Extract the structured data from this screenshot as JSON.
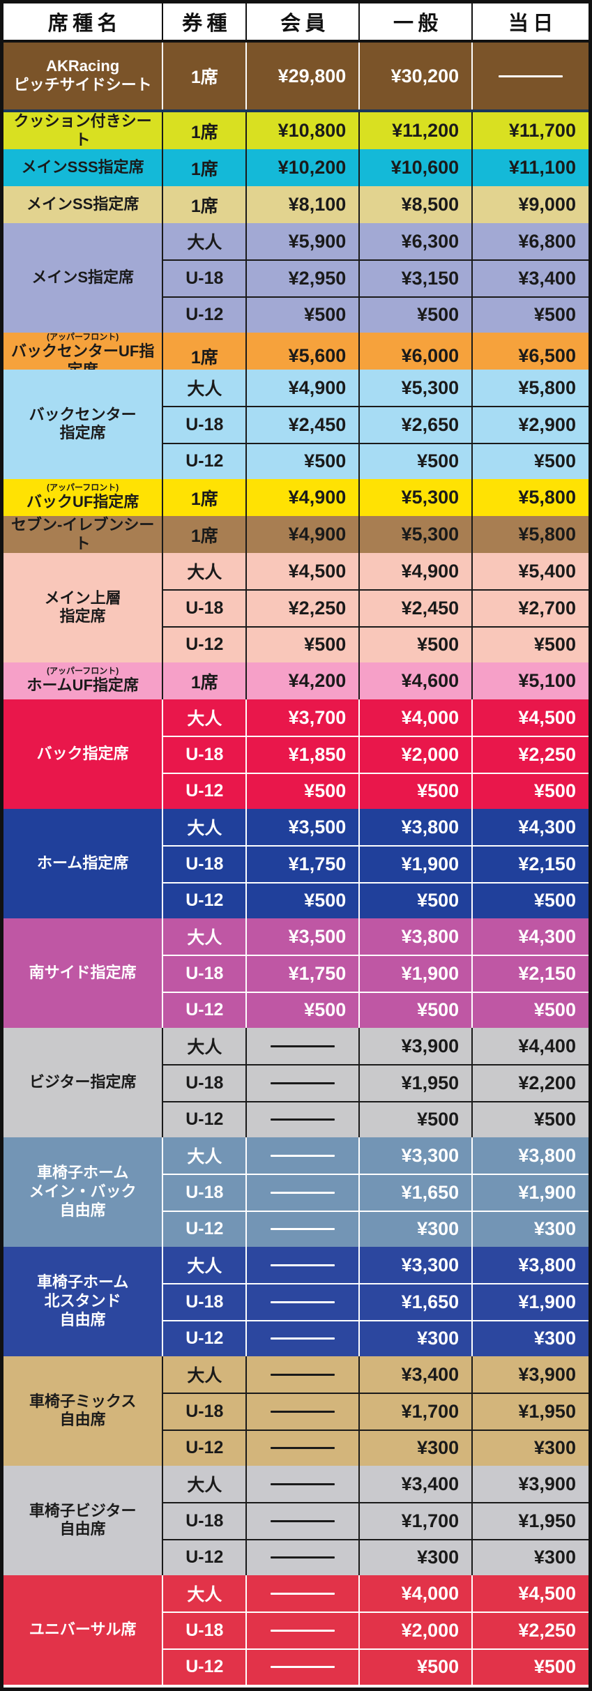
{
  "chart_data": {
    "type": "table",
    "columns": [
      "席種名",
      "券種",
      "会員",
      "一般",
      "当日"
    ],
    "currency": "¥",
    "unavailable_marker": "—",
    "sections": [
      {
        "id": "akracing-pitch-side",
        "seat_name_lines": [
          "AKRacing",
          "ピッチサイドシート"
        ],
        "bg": "#7b5429",
        "text": "#ffffff",
        "separator": "#ffffff",
        "underline": "#17365d",
        "rows": [
          {
            "ticket": "1席",
            "member": "¥29,800",
            "general": "¥30,200",
            "sameday": null
          }
        ]
      },
      {
        "id": "cushion-seat",
        "seat_name_lines": [
          "クッション付きシート"
        ],
        "bg": "#d9e021",
        "text": "#1a1a1a",
        "separator": "#1a1a1a",
        "rows": [
          {
            "ticket": "1席",
            "member": "¥10,800",
            "general": "¥11,200",
            "sameday": "¥11,700"
          }
        ]
      },
      {
        "id": "main-sss-reserved",
        "seat_name_lines": [
          "メインSSS指定席"
        ],
        "bg": "#14b9d8",
        "text": "#1a1a1a",
        "separator": "#1a1a1a",
        "rows": [
          {
            "ticket": "1席",
            "member": "¥10,200",
            "general": "¥10,600",
            "sameday": "¥11,100"
          }
        ]
      },
      {
        "id": "main-ss-reserved",
        "seat_name_lines": [
          "メインSS指定席"
        ],
        "bg": "#e2d38f",
        "text": "#1a1a1a",
        "separator": "#1a1a1a",
        "rows": [
          {
            "ticket": "1席",
            "member": "¥8,100",
            "general": "¥8,500",
            "sameday": "¥9,000"
          }
        ]
      },
      {
        "id": "main-s-reserved",
        "seat_name_lines": [
          "メインS指定席"
        ],
        "bg": "#a2a9d4",
        "text": "#1a1a1a",
        "separator": "#1a1a1a",
        "rows": [
          {
            "ticket": "大人",
            "member": "¥5,900",
            "general": "¥6,300",
            "sameday": "¥6,800"
          },
          {
            "ticket": "U-18",
            "member": "¥2,950",
            "general": "¥3,150",
            "sameday": "¥3,400"
          },
          {
            "ticket": "U-12",
            "member": "¥500",
            "general": "¥500",
            "sameday": "¥500"
          }
        ]
      },
      {
        "id": "back-center-uf-reserved",
        "note": "(アッパーフロント)",
        "seat_name_lines": [
          "バックセンターUF指定席"
        ],
        "bg": "#f6a23c",
        "text": "#1a1a1a",
        "separator": "#1a1a1a",
        "rows": [
          {
            "ticket": "1席",
            "member": "¥5,600",
            "general": "¥6,000",
            "sameday": "¥6,500"
          }
        ]
      },
      {
        "id": "back-center-reserved",
        "seat_name_lines": [
          "バックセンター",
          "指定席"
        ],
        "bg": "#a7dcf4",
        "text": "#1a1a1a",
        "separator": "#1a1a1a",
        "rows": [
          {
            "ticket": "大人",
            "member": "¥4,900",
            "general": "¥5,300",
            "sameday": "¥5,800"
          },
          {
            "ticket": "U-18",
            "member": "¥2,450",
            "general": "¥2,650",
            "sameday": "¥2,900"
          },
          {
            "ticket": "U-12",
            "member": "¥500",
            "general": "¥500",
            "sameday": "¥500"
          }
        ]
      },
      {
        "id": "back-uf-reserved",
        "note": "(アッパーフロント)",
        "seat_name_lines": [
          "バックUF指定席"
        ],
        "bg": "#ffe203",
        "text": "#1a1a1a",
        "separator": "#1a1a1a",
        "rows": [
          {
            "ticket": "1席",
            "member": "¥4,900",
            "general": "¥5,300",
            "sameday": "¥5,800"
          }
        ]
      },
      {
        "id": "seven-eleven-seat",
        "seat_name_lines": [
          "セブン-イレブンシート"
        ],
        "bg": "#a87e52",
        "text": "#1a1a1a",
        "separator": "#1a1a1a",
        "rows": [
          {
            "ticket": "1席",
            "member": "¥4,900",
            "general": "¥5,300",
            "sameday": "¥5,800"
          }
        ]
      },
      {
        "id": "main-upper-reserved",
        "seat_name_lines": [
          "メイン上層",
          "指定席"
        ],
        "bg": "#f9c7ba",
        "text": "#1a1a1a",
        "separator": "#1a1a1a",
        "rows": [
          {
            "ticket": "大人",
            "member": "¥4,500",
            "general": "¥4,900",
            "sameday": "¥5,400"
          },
          {
            "ticket": "U-18",
            "member": "¥2,250",
            "general": "¥2,450",
            "sameday": "¥2,700"
          },
          {
            "ticket": "U-12",
            "member": "¥500",
            "general": "¥500",
            "sameday": "¥500"
          }
        ]
      },
      {
        "id": "home-uf-reserved",
        "note": "(アッパーフロント)",
        "seat_name_lines": [
          "ホームUF指定席"
        ],
        "bg": "#f6a0c8",
        "text": "#1a1a1a",
        "separator": "#1a1a1a",
        "rows": [
          {
            "ticket": "1席",
            "member": "¥4,200",
            "general": "¥4,600",
            "sameday": "¥5,100"
          }
        ]
      },
      {
        "id": "back-reserved",
        "seat_name_lines": [
          "バック指定席"
        ],
        "bg": "#e9174b",
        "text": "#ffffff",
        "separator": "#ffffff",
        "rows": [
          {
            "ticket": "大人",
            "member": "¥3,700",
            "general": "¥4,000",
            "sameday": "¥4,500"
          },
          {
            "ticket": "U-18",
            "member": "¥1,850",
            "general": "¥2,000",
            "sameday": "¥2,250"
          },
          {
            "ticket": "U-12",
            "member": "¥500",
            "general": "¥500",
            "sameday": "¥500"
          }
        ]
      },
      {
        "id": "home-reserved",
        "seat_name_lines": [
          "ホーム指定席"
        ],
        "bg": "#20409b",
        "text": "#ffffff",
        "separator": "#ffffff",
        "rows": [
          {
            "ticket": "大人",
            "member": "¥3,500",
            "general": "¥3,800",
            "sameday": "¥4,300"
          },
          {
            "ticket": "U-18",
            "member": "¥1,750",
            "general": "¥1,900",
            "sameday": "¥2,150"
          },
          {
            "ticket": "U-12",
            "member": "¥500",
            "general": "¥500",
            "sameday": "¥500"
          }
        ]
      },
      {
        "id": "south-side-reserved",
        "seat_name_lines": [
          "南サイド指定席"
        ],
        "bg": "#bf57a4",
        "text": "#ffffff",
        "separator": "#ffffff",
        "rows": [
          {
            "ticket": "大人",
            "member": "¥3,500",
            "general": "¥3,800",
            "sameday": "¥4,300"
          },
          {
            "ticket": "U-18",
            "member": "¥1,750",
            "general": "¥1,900",
            "sameday": "¥2,150"
          },
          {
            "ticket": "U-12",
            "member": "¥500",
            "general": "¥500",
            "sameday": "¥500"
          }
        ]
      },
      {
        "id": "visitor-reserved",
        "seat_name_lines": [
          "ビジター指定席"
        ],
        "bg": "#c9c9cb",
        "text": "#1a1a1a",
        "separator": "#1a1a1a",
        "rows": [
          {
            "ticket": "大人",
            "member": null,
            "general": "¥3,900",
            "sameday": "¥4,400"
          },
          {
            "ticket": "U-18",
            "member": null,
            "general": "¥1,950",
            "sameday": "¥2,200"
          },
          {
            "ticket": "U-12",
            "member": null,
            "general": "¥500",
            "sameday": "¥500"
          }
        ]
      },
      {
        "id": "wheelchair-home-main-back-free",
        "seat_name_lines": [
          "車椅子ホーム",
          "メイン・バック",
          "自由席"
        ],
        "bg": "#7395b5",
        "text": "#ffffff",
        "separator": "#ffffff",
        "rows": [
          {
            "ticket": "大人",
            "member": null,
            "general": "¥3,300",
            "sameday": "¥3,800"
          },
          {
            "ticket": "U-18",
            "member": null,
            "general": "¥1,650",
            "sameday": "¥1,900"
          },
          {
            "ticket": "U-12",
            "member": null,
            "general": "¥300",
            "sameday": "¥300"
          }
        ]
      },
      {
        "id": "wheelchair-home-north-stand-free",
        "seat_name_lines": [
          "車椅子ホーム",
          "北スタンド",
          "自由席"
        ],
        "bg": "#2c479f",
        "text": "#ffffff",
        "separator": "#ffffff",
        "rows": [
          {
            "ticket": "大人",
            "member": null,
            "general": "¥3,300",
            "sameday": "¥3,800"
          },
          {
            "ticket": "U-18",
            "member": null,
            "general": "¥1,650",
            "sameday": "¥1,900"
          },
          {
            "ticket": "U-12",
            "member": null,
            "general": "¥300",
            "sameday": "¥300"
          }
        ]
      },
      {
        "id": "wheelchair-mix-free",
        "seat_name_lines": [
          "車椅子ミックス",
          "自由席"
        ],
        "bg": "#d3b57b",
        "text": "#1a1a1a",
        "separator": "#1a1a1a",
        "rows": [
          {
            "ticket": "大人",
            "member": null,
            "general": "¥3,400",
            "sameday": "¥3,900"
          },
          {
            "ticket": "U-18",
            "member": null,
            "general": "¥1,700",
            "sameday": "¥1,950"
          },
          {
            "ticket": "U-12",
            "member": null,
            "general": "¥300",
            "sameday": "¥300"
          }
        ]
      },
      {
        "id": "wheelchair-visitor-free",
        "seat_name_lines": [
          "車椅子ビジター",
          "自由席"
        ],
        "bg": "#c9c9cd",
        "text": "#1a1a1a",
        "separator": "#1a1a1a",
        "rows": [
          {
            "ticket": "大人",
            "member": null,
            "general": "¥3,400",
            "sameday": "¥3,900"
          },
          {
            "ticket": "U-18",
            "member": null,
            "general": "¥1,700",
            "sameday": "¥1,950"
          },
          {
            "ticket": "U-12",
            "member": null,
            "general": "¥300",
            "sameday": "¥300"
          }
        ]
      },
      {
        "id": "universal-seat",
        "seat_name_lines": [
          "ユニバーサル席"
        ],
        "bg": "#e23349",
        "text": "#ffffff",
        "separator": "#ffffff",
        "rows": [
          {
            "ticket": "大人",
            "member": null,
            "general": "¥4,000",
            "sameday": "¥4,500"
          },
          {
            "ticket": "U-18",
            "member": null,
            "general": "¥2,000",
            "sameday": "¥2,250"
          },
          {
            "ticket": "U-12",
            "member": null,
            "general": "¥500",
            "sameday": "¥500"
          }
        ]
      }
    ]
  },
  "colors": {
    "outer_border": "#111111",
    "header_bg": "#ffffff",
    "header_text": "#111111",
    "akracing_underline": "#17365d"
  }
}
